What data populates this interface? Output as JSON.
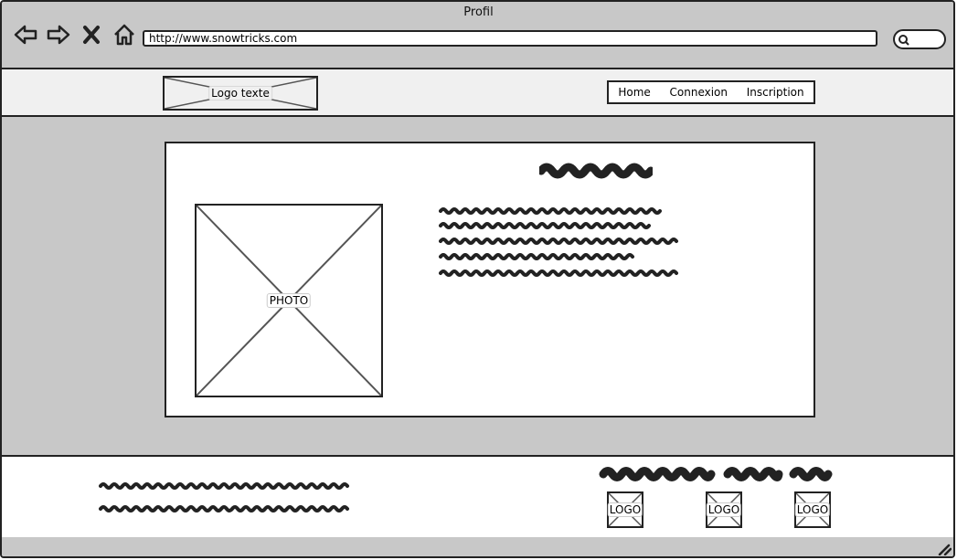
{
  "window": {
    "title": "Profil"
  },
  "browser": {
    "url": "http://www.snowtricks.com",
    "nav_icons": [
      "back-arrow-icon",
      "forward-arrow-icon",
      "close-x-icon",
      "home-icon"
    ],
    "search_icon": "search-icon"
  },
  "header": {
    "logo_label": "Logo texte",
    "menu": [
      {
        "label": "Home"
      },
      {
        "label": "Connexion"
      },
      {
        "label": "Inscription"
      }
    ]
  },
  "profile": {
    "photo_label": "PHOTO"
  },
  "footer": {
    "partners": [
      {
        "label": "LOGO"
      },
      {
        "label": "LOGO"
      },
      {
        "label": "LOGO"
      }
    ]
  },
  "colors": {
    "chrome_bg": "#c8c8c8",
    "header_bg": "#f0f0f0",
    "stroke": "#222222",
    "placeholder_cross": "#555555"
  }
}
